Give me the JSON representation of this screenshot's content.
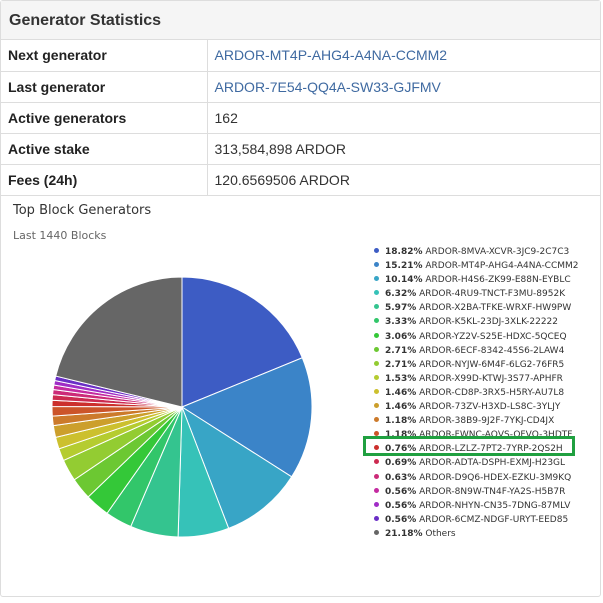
{
  "panel": {
    "title": "Generator Statistics"
  },
  "stats": [
    {
      "key": "Next generator",
      "value": "ARDOR-MT4P-AHG4-A4NA-CCMM2",
      "link": true
    },
    {
      "key": "Last generator",
      "value": "ARDOR-7E54-QQ4A-SW33-GJFMV",
      "link": true
    },
    {
      "key": "Active generators",
      "value": "162",
      "link": false
    },
    {
      "key": "Active stake",
      "value": "313,584,898 ARDOR",
      "link": false
    },
    {
      "key": "Fees (24h)",
      "value": "120.6569506 ARDOR",
      "link": false
    }
  ],
  "chart": {
    "title": "Top Block Generators",
    "subtitle": "Last 1440 Blocks",
    "highlighted_entry": "ARDOR-LZLZ-7PT2-7YRP-2QS2H"
  },
  "chart_data": {
    "type": "pie",
    "title": "Top Block Generators",
    "subtitle": "Last 1440 Blocks",
    "legend_position": "right",
    "slices": [
      {
        "label": "ARDOR-8MVA-XCVR-3JC9-2C7C3",
        "value": 18.82,
        "pct_text": "18.82%",
        "color": "#3d5cc4"
      },
      {
        "label": "ARDOR-MT4P-AHG4-A4NA-CCMM2",
        "value": 15.21,
        "pct_text": "15.21%",
        "color": "#3b84c8"
      },
      {
        "label": "ARDOR-H4S6-ZK99-E88N-EYBLC",
        "value": 10.14,
        "pct_text": "10.14%",
        "color": "#38a5c6"
      },
      {
        "label": "ARDOR-4RU9-TNCT-F3MU-8952K",
        "value": 6.32,
        "pct_text": "6.32%",
        "color": "#36c2b8"
      },
      {
        "label": "ARDOR-X2BA-TFKE-WRXF-HW9PW",
        "value": 5.97,
        "pct_text": "5.97%",
        "color": "#34c48f"
      },
      {
        "label": "ARDOR-K5KL-23DJ-3XLK-22222",
        "value": 3.33,
        "pct_text": "3.33%",
        "color": "#32c66a"
      },
      {
        "label": "ARDOR-YZ2V-S25E-HDXC-5QCEQ",
        "value": 3.06,
        "pct_text": "3.06%",
        "color": "#34c838"
      },
      {
        "label": "ARDOR-6ECF-8342-45S6-2LAW4",
        "value": 2.71,
        "pct_text": "2.71%",
        "color": "#6cc832"
      },
      {
        "label": "ARDOR-NYJW-6M4F-6LG2-76FR5",
        "value": 2.71,
        "pct_text": "2.71%",
        "color": "#93cc32"
      },
      {
        "label": "ARDOR-X99D-KTWJ-3S77-APHFR",
        "value": 1.53,
        "pct_text": "1.53%",
        "color": "#b5cc30"
      },
      {
        "label": "ARDOR-CD8P-3RX5-H5RY-AU7L8",
        "value": 1.46,
        "pct_text": "1.46%",
        "color": "#ccc02e"
      },
      {
        "label": "ARDOR-73ZV-H3XD-LS8C-3YLJY",
        "value": 1.46,
        "pct_text": "1.46%",
        "color": "#cc9f2c"
      },
      {
        "label": "ARDOR-38B9-9J2F-7YKJ-CD4JX",
        "value": 1.18,
        "pct_text": "1.18%",
        "color": "#cc7a2b"
      },
      {
        "label": "ARDOR-FWNC-AQVS-QFVQ-3HDTF",
        "value": 1.18,
        "pct_text": "1.18%",
        "color": "#cc5429"
      },
      {
        "label": "ARDOR-LZLZ-7PT2-7YRP-2QS2H",
        "value": 0.76,
        "pct_text": "0.76%",
        "color": "#cc2f2c"
      },
      {
        "label": "ARDOR-ADTA-DSPH-EXMJ-H23GL",
        "value": 0.69,
        "pct_text": "0.69%",
        "color": "#cc2a50"
      },
      {
        "label": "ARDOR-D9Q6-HDEX-EZKU-3M9KQ",
        "value": 0.63,
        "pct_text": "0.63%",
        "color": "#cc2a78"
      },
      {
        "label": "ARDOR-8N9W-TN4F-YA2S-H5B7R",
        "value": 0.56,
        "pct_text": "0.56%",
        "color": "#c42aa0"
      },
      {
        "label": "ARDOR-NHYN-CN35-7DNG-87MLV",
        "value": 0.56,
        "pct_text": "0.56%",
        "color": "#a02cc6"
      },
      {
        "label": "ARDOR-6CMZ-NDGF-URYT-EED85",
        "value": 0.56,
        "pct_text": "0.56%",
        "color": "#6a2ec6"
      },
      {
        "label": "Others",
        "value": 21.18,
        "pct_text": "21.18%",
        "color": "#666666"
      }
    ]
  }
}
